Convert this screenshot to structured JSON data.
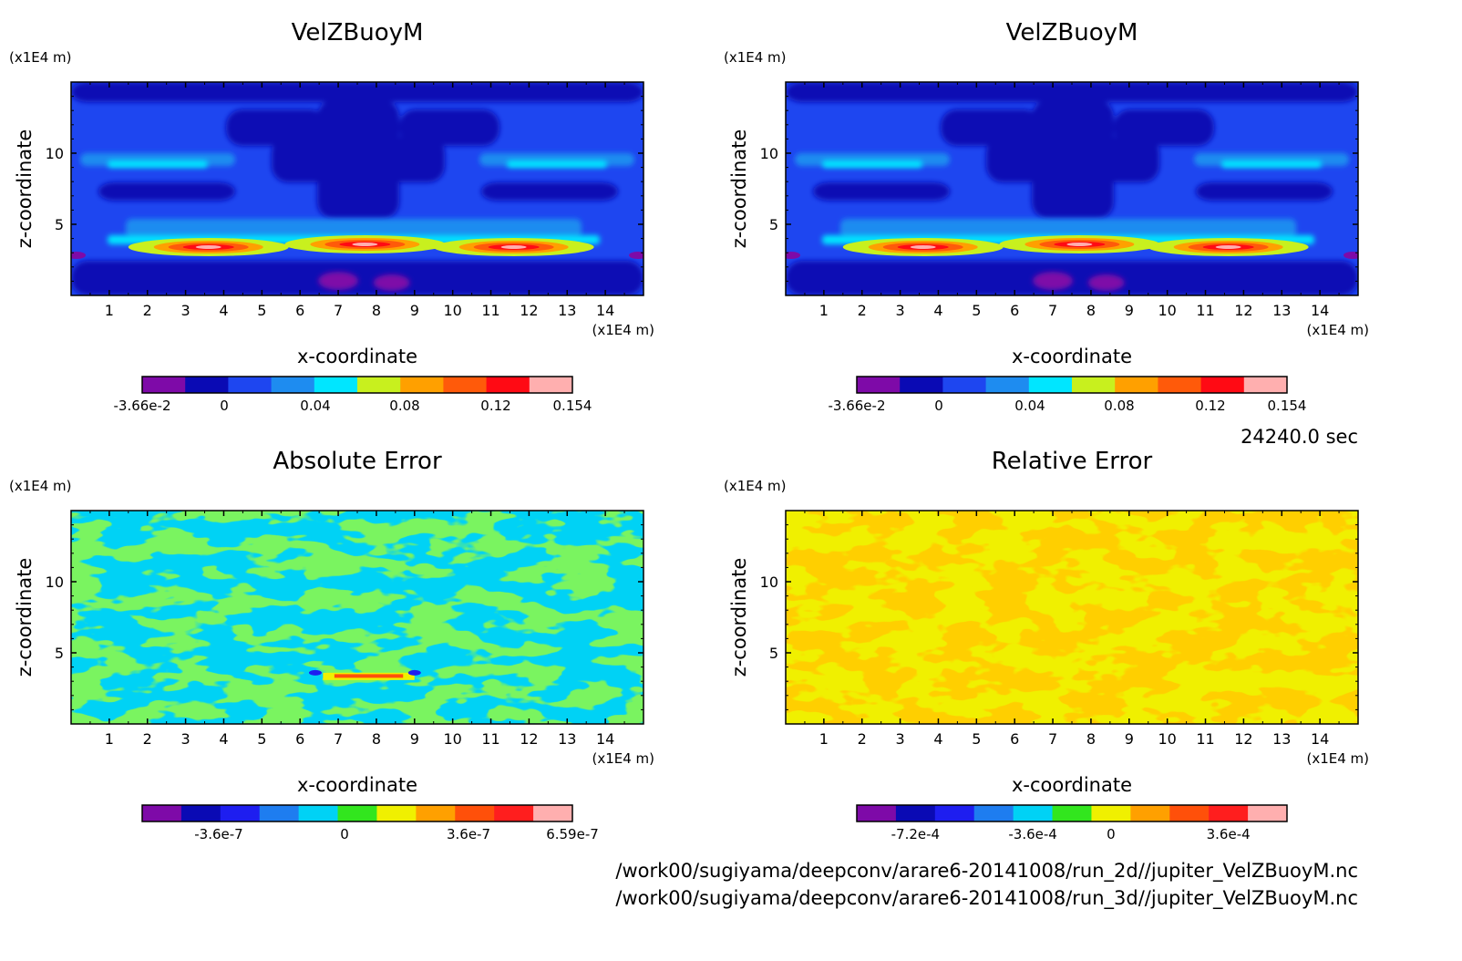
{
  "figure": {
    "time_label": "24240.0 sec",
    "file_paths": [
      "/work00/sugiyama/deepconv/arare6-20141008/run_2d//jupiter_VelZBuoyM.nc",
      "/work00/sugiyama/deepconv/arare6-20141008/run_3d//jupiter_VelZBuoyM.nc"
    ]
  },
  "chart_data": [
    {
      "type": "heatmap",
      "title": "VelZBuoyM",
      "xlabel": "x-coordinate",
      "ylabel": "z-coordinate",
      "x_unit": "(x1E4 m)",
      "y_unit": "(x1E4 m)",
      "xlim": [
        0,
        15
      ],
      "ylim": [
        0,
        15
      ],
      "xticks": [
        "1",
        "2",
        "3",
        "4",
        "5",
        "6",
        "7",
        "8",
        "9",
        "10",
        "11",
        "12",
        "13",
        "14"
      ],
      "yticks": [
        "5",
        "10"
      ],
      "field": "velz",
      "colorbar": {
        "colors": [
          "#7e0aa8",
          "#0a0ab4",
          "#1e46f0",
          "#1e8cf0",
          "#00e6ff",
          "#c8f01e",
          "#ffa000",
          "#ff5a0a",
          "#ff0a14",
          "#ffafaf"
        ],
        "labels": [
          "-3.66e-2",
          "0",
          "0.04",
          "0.08",
          "0.12",
          "0.154"
        ]
      }
    },
    {
      "type": "heatmap",
      "title": "VelZBuoyM",
      "xlabel": "x-coordinate",
      "ylabel": "z-coordinate",
      "x_unit": "(x1E4 m)",
      "y_unit": "(x1E4 m)",
      "xlim": [
        0,
        15
      ],
      "ylim": [
        0,
        15
      ],
      "xticks": [
        "1",
        "2",
        "3",
        "4",
        "5",
        "6",
        "7",
        "8",
        "9",
        "10",
        "11",
        "12",
        "13",
        "14"
      ],
      "yticks": [
        "5",
        "10"
      ],
      "field": "velz",
      "colorbar": {
        "colors": [
          "#7e0aa8",
          "#0a0ab4",
          "#1e46f0",
          "#1e8cf0",
          "#00e6ff",
          "#c8f01e",
          "#ffa000",
          "#ff5a0a",
          "#ff0a14",
          "#ffafaf"
        ],
        "labels": [
          "-3.66e-2",
          "0",
          "0.04",
          "0.08",
          "0.12",
          "0.154"
        ]
      }
    },
    {
      "type": "heatmap",
      "title": "Absolute Error",
      "xlabel": "x-coordinate",
      "ylabel": "z-coordinate",
      "x_unit": "(x1E4 m)",
      "y_unit": "(x1E4 m)",
      "xlim": [
        0,
        15
      ],
      "ylim": [
        0,
        15
      ],
      "xticks": [
        "1",
        "2",
        "3",
        "4",
        "5",
        "6",
        "7",
        "8",
        "9",
        "10",
        "11",
        "12",
        "13",
        "14"
      ],
      "yticks": [
        "5",
        "10"
      ],
      "field": "abs",
      "colorbar": {
        "colors": [
          "#7e0aa8",
          "#0a0ab4",
          "#1e1ef0",
          "#1e7df0",
          "#00d2f5",
          "#32e61e",
          "#f0f000",
          "#ffa000",
          "#ff500a",
          "#ff1e1e",
          "#ffafaf"
        ],
        "labels": [
          "-3.6e-7",
          "0",
          "3.6e-7",
          "6.59e-7"
        ]
      }
    },
    {
      "type": "heatmap",
      "title": "Relative Error",
      "xlabel": "x-coordinate",
      "ylabel": "z-coordinate",
      "x_unit": "(x1E4 m)",
      "y_unit": "(x1E4 m)",
      "xlim": [
        0,
        15
      ],
      "ylim": [
        0,
        15
      ],
      "xticks": [
        "1",
        "2",
        "3",
        "4",
        "5",
        "6",
        "7",
        "8",
        "9",
        "10",
        "11",
        "12",
        "13",
        "14"
      ],
      "yticks": [
        "5",
        "10"
      ],
      "field": "rel",
      "colorbar": {
        "colors": [
          "#7e0aa8",
          "#0a0ab4",
          "#1e1ef0",
          "#1e7df0",
          "#00d2f5",
          "#32e61e",
          "#f0f000",
          "#ffa000",
          "#ff500a",
          "#ff1e1e",
          "#ffafaf"
        ],
        "labels": [
          "-7.2e-4",
          "-3.6e-4",
          "0",
          "3.6e-4"
        ]
      }
    }
  ]
}
